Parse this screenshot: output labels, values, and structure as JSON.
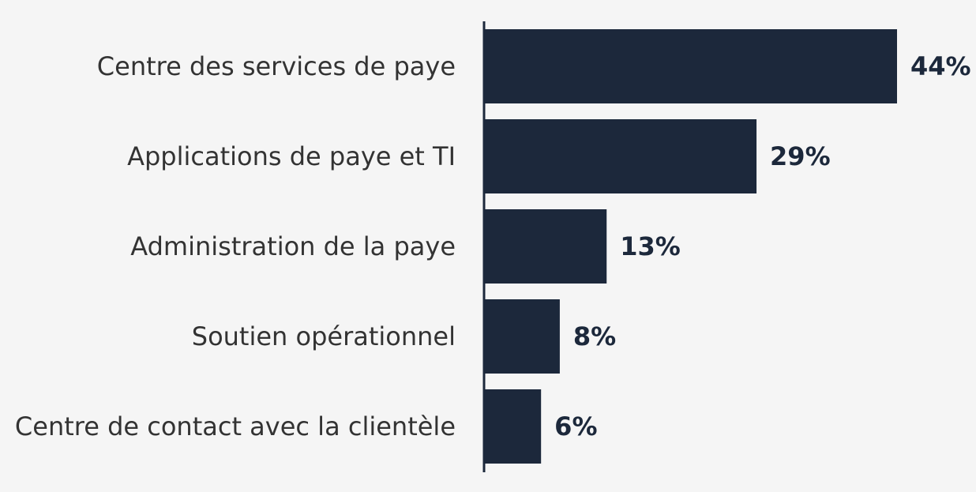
{
  "colors": {
    "background": "#f5f5f5",
    "bar": "#1c283b",
    "axis": "#1c283b",
    "category_text": "#333333",
    "value_text": "#1c283b"
  },
  "chart_data": {
    "type": "bar",
    "orientation": "horizontal",
    "categories": [
      "Centre des services de paye ",
      "Applications de paye et TI",
      "Administration de la paye",
      "Soutien opérationnel ",
      "Centre de contact avec la clientèle"
    ],
    "values": [
      44,
      29,
      13,
      8,
      6
    ],
    "value_labels": [
      "44%",
      "29%",
      "13%",
      "8%",
      "6%"
    ],
    "unit": "%",
    "xlim": [
      0,
      44
    ],
    "grid": false,
    "legend": "none",
    "title": "",
    "xlabel": "",
    "ylabel": ""
  }
}
